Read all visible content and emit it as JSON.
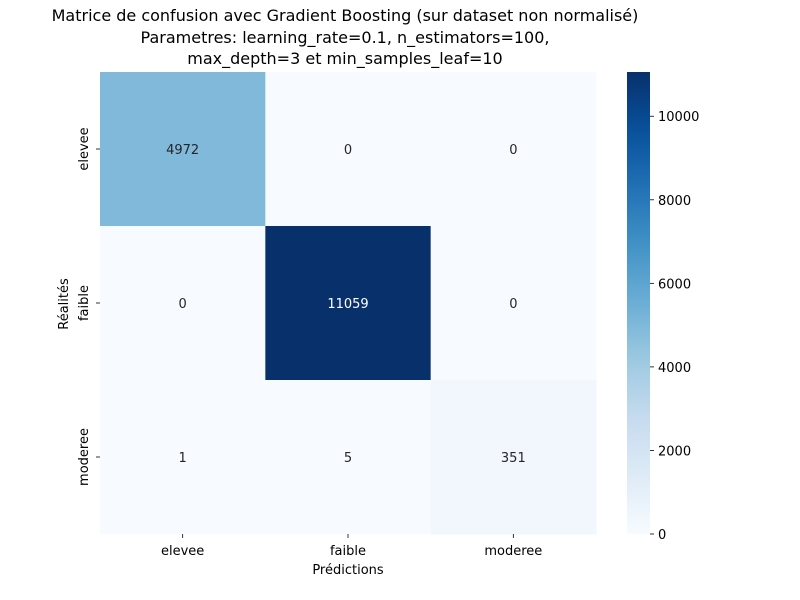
{
  "chart_data": {
    "type": "heatmap",
    "title_lines": [
      "Matrice de confusion avec Gradient Boosting (sur dataset non normalisé)",
      "Parametres: learning_rate=0.1, n_estimators=100,",
      "max_depth=3 et min_samples_leaf=10"
    ],
    "xlabel": "Prédictions",
    "ylabel": "Réalités",
    "x_categories": [
      "elevee",
      "faible",
      "moderee"
    ],
    "y_categories": [
      "elevee",
      "faible",
      "moderee"
    ],
    "matrix": [
      [
        4972,
        0,
        0
      ],
      [
        0,
        11059,
        0
      ],
      [
        1,
        5,
        351
      ]
    ],
    "colormap": "Blues",
    "colorbar": {
      "min": 0,
      "max": 11059,
      "ticks": [
        0,
        2000,
        4000,
        6000,
        8000,
        10000
      ]
    },
    "colors": {
      "low": "#f7fbff",
      "high": "#08306b",
      "text_dark": "#262626",
      "text_light": "#ffffff"
    }
  }
}
